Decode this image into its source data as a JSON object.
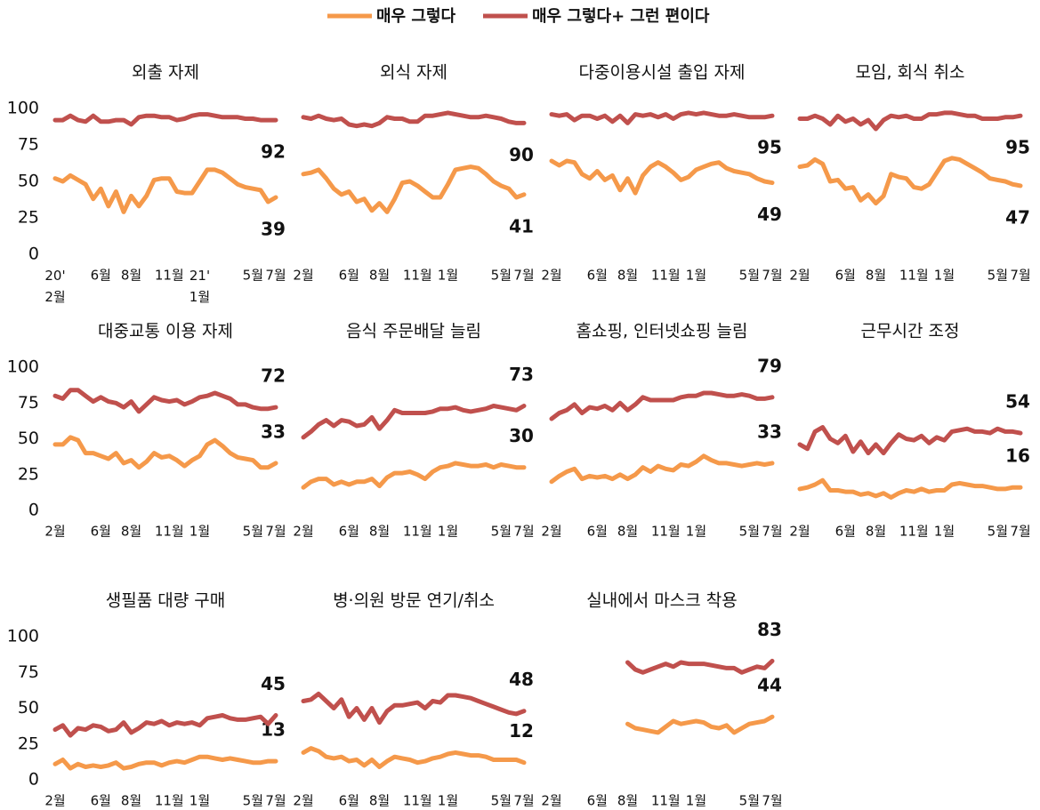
{
  "legend": [
    {
      "name": "매우 그렇다",
      "color": "#f5994a"
    },
    {
      "name": "매우 그렇다+ 그런 편이다",
      "color": "#c0504d"
    }
  ],
  "chart_data": [
    {
      "type": "line",
      "title": "외출 자제",
      "categories": [
        "20'\n2월",
        null,
        null,
        null,
        null,
        null,
        "6월",
        null,
        null,
        null,
        "8월",
        null,
        null,
        null,
        null,
        "11월",
        null,
        null,
        null,
        "21'\n1월",
        null,
        null,
        null,
        null,
        null,
        null,
        "5월",
        null,
        null,
        "7월"
      ],
      "ylim": [
        0,
        100
      ],
      "yticks": [
        0,
        25,
        50,
        75,
        100
      ],
      "series": [
        {
          "color": "#f5994a",
          "values": [
            52,
            50,
            54,
            51,
            48,
            38,
            45,
            33,
            43,
            29,
            40,
            33,
            40,
            51,
            52,
            52,
            43,
            42,
            42,
            50,
            58,
            58,
            56,
            52,
            48,
            46,
            45,
            44,
            36,
            39
          ]
        },
        {
          "color": "#c0504d",
          "values": [
            92,
            92,
            95,
            92,
            91,
            95,
            91,
            91,
            92,
            92,
            89,
            94,
            95,
            95,
            94,
            94,
            92,
            93,
            95,
            96,
            96,
            95,
            94,
            94,
            94,
            93,
            93,
            92,
            92,
            92
          ]
        }
      ]
    },
    {
      "type": "line",
      "title": "외식 자제",
      "categories": [
        "2월",
        null,
        null,
        null,
        null,
        null,
        "6월",
        null,
        null,
        null,
        "8월",
        null,
        null,
        null,
        null,
        "11월",
        null,
        null,
        null,
        "1월",
        null,
        null,
        null,
        null,
        null,
        null,
        "5월",
        null,
        null,
        "7월"
      ],
      "ylim": [
        0,
        100
      ],
      "series": [
        {
          "color": "#f5994a",
          "values": [
            55,
            56,
            58,
            52,
            45,
            41,
            43,
            36,
            38,
            30,
            35,
            29,
            38,
            49,
            50,
            47,
            43,
            39,
            39,
            48,
            58,
            59,
            60,
            59,
            55,
            50,
            47,
            45,
            39,
            41
          ]
        },
        {
          "color": "#c0504d",
          "values": [
            94,
            93,
            95,
            93,
            92,
            93,
            89,
            88,
            89,
            88,
            90,
            94,
            93,
            93,
            91,
            91,
            95,
            95,
            96,
            97,
            96,
            95,
            94,
            94,
            95,
            94,
            93,
            91,
            90,
            90
          ]
        }
      ]
    },
    {
      "type": "line",
      "title": "다중이용시설 출입 자제",
      "categories": [
        "2월",
        null,
        null,
        null,
        null,
        null,
        "6월",
        null,
        null,
        null,
        "8월",
        null,
        null,
        null,
        null,
        "11월",
        null,
        null,
        null,
        "1월",
        null,
        null,
        null,
        null,
        null,
        null,
        "5월",
        null,
        null,
        "7월"
      ],
      "ylim": [
        0,
        100
      ],
      "series": [
        {
          "color": "#f5994a",
          "values": [
            64,
            61,
            64,
            63,
            55,
            52,
            57,
            51,
            54,
            44,
            52,
            42,
            54,
            60,
            63,
            60,
            56,
            51,
            53,
            58,
            60,
            62,
            63,
            59,
            57,
            56,
            55,
            52,
            50,
            49
          ]
        },
        {
          "color": "#c0504d",
          "values": [
            96,
            95,
            96,
            92,
            95,
            95,
            93,
            95,
            91,
            95,
            90,
            96,
            95,
            96,
            94,
            96,
            93,
            96,
            97,
            96,
            97,
            96,
            95,
            95,
            96,
            95,
            94,
            94,
            94,
            95
          ]
        }
      ]
    },
    {
      "type": "line",
      "title": "모임, 회식 취소",
      "categories": [
        "2월",
        null,
        null,
        null,
        null,
        null,
        "6월",
        null,
        null,
        null,
        "8월",
        null,
        null,
        null,
        null,
        "11월",
        null,
        null,
        null,
        "1월",
        null,
        null,
        null,
        null,
        null,
        null,
        "5월",
        null,
        null,
        "7월"
      ],
      "ylim": [
        0,
        100
      ],
      "series": [
        {
          "color": "#f5994a",
          "values": [
            60,
            61,
            65,
            62,
            50,
            51,
            45,
            46,
            37,
            41,
            35,
            40,
            55,
            53,
            52,
            46,
            45,
            48,
            56,
            64,
            66,
            65,
            62,
            59,
            56,
            52,
            51,
            50,
            48,
            47
          ]
        },
        {
          "color": "#c0504d",
          "values": [
            93,
            93,
            95,
            93,
            89,
            95,
            91,
            93,
            89,
            92,
            86,
            92,
            95,
            94,
            95,
            93,
            93,
            96,
            96,
            97,
            97,
            96,
            95,
            95,
            93,
            93,
            93,
            94,
            94,
            95
          ]
        }
      ]
    },
    {
      "type": "line",
      "title": "대중교통 이용 자제",
      "categories": [
        "2월",
        null,
        null,
        null,
        null,
        null,
        "6월",
        null,
        null,
        null,
        "8월",
        null,
        null,
        null,
        null,
        "11월",
        null,
        null,
        null,
        "1월",
        null,
        null,
        null,
        null,
        null,
        null,
        "5월",
        null,
        null,
        "7월"
      ],
      "ylim": [
        0,
        100
      ],
      "yticks": [
        0,
        25,
        50,
        75,
        100
      ],
      "series": [
        {
          "color": "#f5994a",
          "values": [
            46,
            46,
            51,
            49,
            40,
            40,
            38,
            36,
            40,
            33,
            35,
            30,
            34,
            40,
            37,
            38,
            35,
            31,
            35,
            38,
            46,
            49,
            45,
            40,
            37,
            36,
            35,
            30,
            30,
            33
          ]
        },
        {
          "color": "#c0504d",
          "values": [
            80,
            78,
            84,
            84,
            80,
            76,
            79,
            76,
            75,
            72,
            76,
            69,
            74,
            79,
            77,
            76,
            77,
            74,
            76,
            79,
            80,
            82,
            80,
            78,
            74,
            74,
            72,
            71,
            71,
            72
          ]
        }
      ]
    },
    {
      "type": "line",
      "title": "음식 주문배달 늘림",
      "categories": [
        "2월",
        null,
        null,
        null,
        null,
        null,
        "6월",
        null,
        null,
        null,
        "8월",
        null,
        null,
        null,
        null,
        "11월",
        null,
        null,
        null,
        "1월",
        null,
        null,
        null,
        null,
        null,
        null,
        "5월",
        null,
        null,
        "7월"
      ],
      "ylim": [
        0,
        100
      ],
      "series": [
        {
          "color": "#f5994a",
          "values": [
            16,
            20,
            22,
            22,
            18,
            20,
            18,
            20,
            20,
            22,
            17,
            23,
            26,
            26,
            27,
            25,
            22,
            27,
            30,
            31,
            33,
            32,
            31,
            31,
            32,
            30,
            32,
            31,
            30,
            30
          ]
        },
        {
          "color": "#c0504d",
          "values": [
            51,
            55,
            60,
            63,
            59,
            63,
            62,
            59,
            60,
            65,
            57,
            63,
            70,
            68,
            68,
            68,
            68,
            69,
            71,
            71,
            72,
            70,
            69,
            70,
            71,
            73,
            72,
            71,
            70,
            73
          ]
        }
      ]
    },
    {
      "type": "line",
      "title": "홈쇼핑, 인터넷쇼핑 늘림",
      "categories": [
        "2월",
        null,
        null,
        null,
        null,
        null,
        "6월",
        null,
        null,
        null,
        "8월",
        null,
        null,
        null,
        null,
        "11월",
        null,
        null,
        null,
        "1월",
        null,
        null,
        null,
        null,
        null,
        null,
        "5월",
        null,
        null,
        "7월"
      ],
      "ylim": [
        0,
        100
      ],
      "series": [
        {
          "color": "#f5994a",
          "values": [
            20,
            24,
            27,
            29,
            22,
            24,
            23,
            24,
            22,
            25,
            22,
            25,
            30,
            27,
            31,
            29,
            28,
            32,
            31,
            34,
            38,
            35,
            33,
            33,
            32,
            31,
            32,
            33,
            32,
            33
          ]
        },
        {
          "color": "#c0504d",
          "values": [
            64,
            68,
            70,
            74,
            68,
            72,
            71,
            73,
            70,
            75,
            70,
            74,
            79,
            77,
            77,
            77,
            77,
            79,
            80,
            80,
            82,
            82,
            81,
            80,
            80,
            81,
            80,
            78,
            78,
            79
          ]
        }
      ]
    },
    {
      "type": "line",
      "title": "근무시간 조정",
      "categories": [
        "2월",
        null,
        null,
        null,
        null,
        null,
        "6월",
        null,
        null,
        null,
        "8월",
        null,
        null,
        null,
        null,
        "11월",
        null,
        null,
        null,
        "1월",
        null,
        null,
        null,
        null,
        null,
        null,
        "5월",
        null,
        null,
        "7월"
      ],
      "ylim": [
        0,
        100
      ],
      "series": [
        {
          "color": "#f5994a",
          "values": [
            15,
            16,
            18,
            21,
            14,
            14,
            13,
            13,
            11,
            12,
            10,
            12,
            9,
            12,
            14,
            13,
            15,
            13,
            14,
            14,
            18,
            19,
            18,
            17,
            17,
            16,
            15,
            15,
            16,
            16
          ]
        },
        {
          "color": "#c0504d",
          "values": [
            46,
            43,
            55,
            58,
            50,
            47,
            52,
            41,
            48,
            40,
            46,
            40,
            47,
            53,
            50,
            49,
            52,
            47,
            51,
            49,
            55,
            56,
            57,
            55,
            55,
            54,
            57,
            55,
            55,
            54
          ]
        }
      ]
    },
    {
      "type": "line",
      "title": "생필품 대량 구매",
      "categories": [
        "2월",
        null,
        null,
        null,
        null,
        null,
        "6월",
        null,
        null,
        null,
        "8월",
        null,
        null,
        null,
        null,
        "11월",
        null,
        null,
        null,
        "1월",
        null,
        null,
        null,
        null,
        null,
        null,
        "5월",
        null,
        null,
        "7월"
      ],
      "ylim": [
        0,
        100
      ],
      "yticks": [
        0,
        25,
        50,
        75,
        100
      ],
      "series": [
        {
          "color": "#f5994a",
          "values": [
            11,
            14,
            8,
            11,
            9,
            10,
            9,
            10,
            12,
            8,
            9,
            11,
            12,
            12,
            10,
            12,
            13,
            12,
            14,
            16,
            16,
            15,
            14,
            15,
            14,
            13,
            12,
            12,
            13,
            13
          ]
        },
        {
          "color": "#c0504d",
          "values": [
            35,
            38,
            31,
            36,
            35,
            38,
            37,
            34,
            35,
            40,
            33,
            36,
            40,
            39,
            41,
            38,
            40,
            39,
            40,
            38,
            43,
            44,
            45,
            43,
            42,
            42,
            43,
            44,
            39,
            45
          ]
        }
      ]
    },
    {
      "type": "line",
      "title": "병·의원 방문 연기/취소",
      "categories": [
        "2월",
        null,
        null,
        null,
        null,
        null,
        "6월",
        null,
        null,
        null,
        "8월",
        null,
        null,
        null,
        null,
        "11월",
        null,
        null,
        null,
        "1월",
        null,
        null,
        null,
        null,
        null,
        null,
        "5월",
        null,
        null,
        "7월"
      ],
      "ylim": [
        0,
        100
      ],
      "series": [
        {
          "color": "#f5994a",
          "values": [
            19,
            22,
            20,
            16,
            15,
            16,
            13,
            14,
            10,
            14,
            9,
            13,
            16,
            15,
            14,
            12,
            13,
            15,
            16,
            18,
            19,
            18,
            17,
            17,
            16,
            14,
            14,
            14,
            14,
            12
          ]
        },
        {
          "color": "#c0504d",
          "values": [
            55,
            56,
            60,
            55,
            50,
            56,
            44,
            50,
            42,
            50,
            40,
            48,
            52,
            52,
            53,
            54,
            50,
            55,
            54,
            59,
            59,
            58,
            57,
            55,
            53,
            51,
            49,
            47,
            46,
            48
          ]
        }
      ]
    },
    {
      "type": "line",
      "title": "실내에서 마스크 착용",
      "categories": [
        "2월",
        null,
        null,
        null,
        null,
        null,
        "6월",
        null,
        null,
        null,
        "8월",
        null,
        null,
        null,
        null,
        "11월",
        null,
        null,
        null,
        "1월",
        null,
        null,
        null,
        null,
        null,
        null,
        "5월",
        null,
        null,
        "7월"
      ],
      "ylim": [
        0,
        100
      ],
      "series": [
        {
          "color": "#f5994a",
          "values": [
            null,
            null,
            null,
            null,
            null,
            null,
            null,
            null,
            null,
            null,
            39,
            36,
            35,
            34,
            33,
            37,
            41,
            39,
            40,
            41,
            40,
            37,
            36,
            38,
            33,
            36,
            39,
            40,
            41,
            44
          ]
        },
        {
          "color": "#c0504d",
          "values": [
            null,
            null,
            null,
            null,
            null,
            null,
            null,
            null,
            null,
            null,
            82,
            77,
            75,
            77,
            79,
            81,
            79,
            82,
            81,
            81,
            81,
            80,
            79,
            78,
            78,
            75,
            77,
            79,
            78,
            83
          ]
        }
      ]
    }
  ]
}
